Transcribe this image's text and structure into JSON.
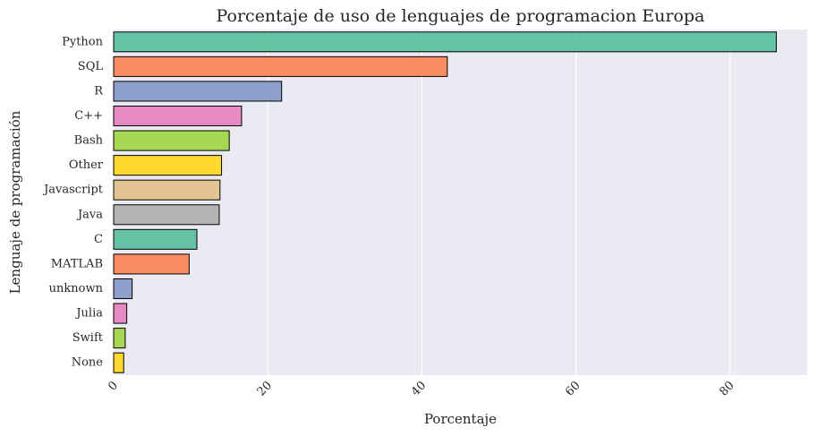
{
  "chart_data": {
    "type": "bar",
    "orientation": "horizontal",
    "title": "Porcentaje de uso de lenguajes de programacion Europa",
    "xlabel": "Porcentaje",
    "ylabel": "Lenguaje de programación",
    "xlim": [
      0,
      90
    ],
    "xticks": [
      0,
      20,
      40,
      60,
      80
    ],
    "grid": true,
    "categories": [
      "Python",
      "SQL",
      "R",
      "C++",
      "Bash",
      "Other",
      "Javascript",
      "Java",
      "C",
      "MATLAB",
      "unknown",
      "Julia",
      "Swift",
      "None"
    ],
    "values": [
      86.0,
      43.3,
      21.8,
      16.6,
      15.0,
      14.0,
      13.8,
      13.7,
      10.8,
      9.8,
      2.4,
      1.7,
      1.5,
      1.3
    ],
    "colors": [
      "#66c2a5",
      "#fc8d62",
      "#8da0cb",
      "#e78ac3",
      "#a6d854",
      "#ffd92f",
      "#e5c494",
      "#b3b3b3",
      "#66c2a5",
      "#fc8d62",
      "#8da0cb",
      "#e78ac3",
      "#a6d854",
      "#ffd92f"
    ],
    "background": "#eaeaf2"
  }
}
